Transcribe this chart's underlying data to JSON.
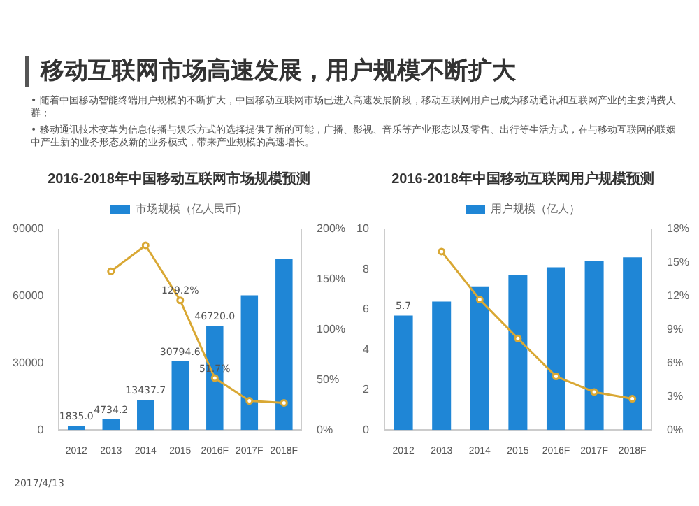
{
  "chart_data": [
    {
      "type": "other",
      "title": "移动互联网市场高速发展，用户规模不断扩大",
      "annotations": [
        "• 随着中国移动智能终端用户规模的不断扩大，中国移动互联网市场已进入高速发展阶段，移动互联网用户已成为移动通讯和互联网产业的主要消费人群；",
        "• 移动通讯技术变革为信息传播与娱乐方式的选择提供了新的可能，广播、影视、音乐等产业形态以及零售、出行等生活方式，在与移动互联网的联姻中产生新的业务形态及新的业务模式，带来产业规模的高速增长。",
        "2017/4/13"
      ]
    },
    {
      "type": "bar",
      "title": "2016-2018年中国移动互联网市场规模预测",
      "categories": [
        "2012",
        "2013",
        "2014",
        "2015",
        "2016F",
        "2017F",
        "2018F"
      ],
      "legend": "top",
      "marker": "circle",
      "ylim": [
        0,
        90000
      ],
      "yticks": [
        0,
        30000,
        60000,
        90000
      ],
      "y2lim": [
        0,
        200
      ],
      "y2ticks": [
        {
          "value": 0,
          "label": "0%"
        },
        {
          "value": 50,
          "label": "50%"
        },
        {
          "value": 100,
          "label": "100%"
        },
        {
          "value": 150,
          "label": "150%"
        },
        {
          "value": 200,
          "label": "200%"
        }
      ],
      "series": [
        {
          "name": "市场规模（亿人民币）",
          "type": "bar",
          "color": "#1f86d6",
          "values": [
            1835.0,
            4734.2,
            13437.7,
            30794.6,
            46720.0,
            60400,
            76700
          ],
          "value_labels": [
            "1835.0",
            "4734.2",
            "13437.7",
            "30794.6",
            "46720.0",
            null,
            null
          ]
        },
        {
          "type": "line",
          "axis": "y2",
          "color": "#d9a834",
          "values": [
            null,
            158,
            184,
            129.2,
            51.7,
            29,
            27
          ],
          "value_labels": [
            null,
            null,
            null,
            "129.2%",
            "51.7%",
            null,
            null
          ]
        }
      ]
    },
    {
      "type": "bar",
      "title": "2016-2018年中国移动互联网用户规模预测",
      "categories": [
        "2012",
        "2013",
        "2014",
        "2015",
        "2016F",
        "2017F",
        "2018F"
      ],
      "legend": "top",
      "marker": "circle",
      "ylim": [
        0,
        10
      ],
      "yticks": [
        0,
        2,
        4,
        6,
        8,
        10
      ],
      "y2lim": [
        0,
        18
      ],
      "y2ticks": [
        {
          "value": 0,
          "label": "0%"
        },
        {
          "value": 3,
          "label": "3%"
        },
        {
          "value": 6,
          "label": "6%"
        },
        {
          "value": 9,
          "label": "9%"
        },
        {
          "value": 12,
          "label": "12%"
        },
        {
          "value": 15,
          "label": "15%"
        },
        {
          "value": 18,
          "label": "18%"
        }
      ],
      "series": [
        {
          "name": "用户规模（亿人）",
          "type": "bar",
          "color": "#1f86d6",
          "values": [
            5.7,
            6.4,
            7.15,
            7.74,
            8.1,
            8.4,
            8.6
          ],
          "value_labels": [
            "5.7",
            null,
            null,
            null,
            null,
            null,
            null
          ]
        },
        {
          "type": "line",
          "axis": "y2",
          "color": "#d9a834",
          "values": [
            null,
            16,
            11.7,
            8.2,
            4.8,
            3.4,
            2.8
          ]
        }
      ]
    }
  ]
}
